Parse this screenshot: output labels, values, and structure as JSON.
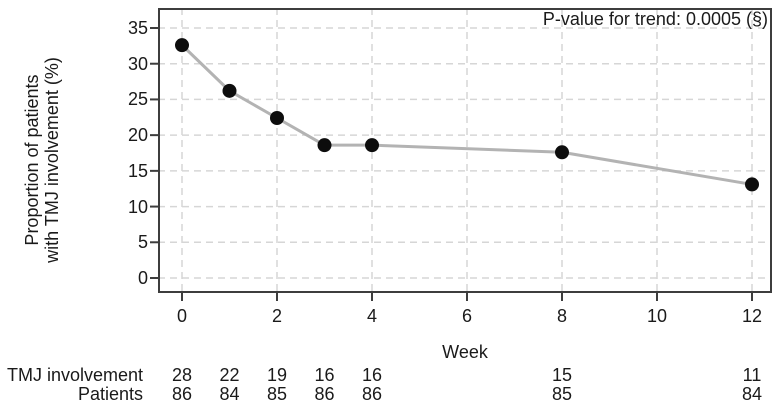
{
  "chart_data": {
    "type": "line",
    "title": "",
    "xlabel": "Week",
    "ylabel_lines": [
      "Proportion of patients",
      "with TMJ involvement (%)"
    ],
    "annotation": "P-value for trend: 0.0005 (§)",
    "x": [
      0,
      1,
      2,
      3,
      4,
      8,
      12
    ],
    "y": [
      32.6,
      26.2,
      22.4,
      18.6,
      18.6,
      17.6,
      13.1
    ],
    "x_ticks": [
      "0",
      "2",
      "4",
      "6",
      "8",
      "10",
      "12"
    ],
    "x_tick_values": [
      0,
      2,
      4,
      6,
      8,
      10,
      12
    ],
    "y_ticks": [
      "0",
      "5",
      "10",
      "15",
      "20",
      "25",
      "30",
      "35"
    ],
    "y_tick_values": [
      0,
      5,
      10,
      15,
      20,
      25,
      30,
      35
    ],
    "xlim": [
      0,
      12
    ],
    "ylim": [
      0,
      35
    ],
    "grid": "dashed horizontal and vertical",
    "legend": "none",
    "colors": {
      "line": "#b3b3b3",
      "marker": "#0d0d0d",
      "grid": "#d6d6d6",
      "axis": "#3d3d3d",
      "text": "#1a1a1a"
    }
  },
  "counts_table": {
    "weeks": [
      0,
      1,
      2,
      3,
      4,
      8,
      12
    ],
    "rows": [
      {
        "label": "TMJ involvement",
        "values": [
          "28",
          "22",
          "19",
          "16",
          "16",
          "15",
          "11"
        ]
      },
      {
        "label": "Patients",
        "values": [
          "86",
          "84",
          "85",
          "86",
          "86",
          "85",
          "84"
        ]
      }
    ]
  }
}
